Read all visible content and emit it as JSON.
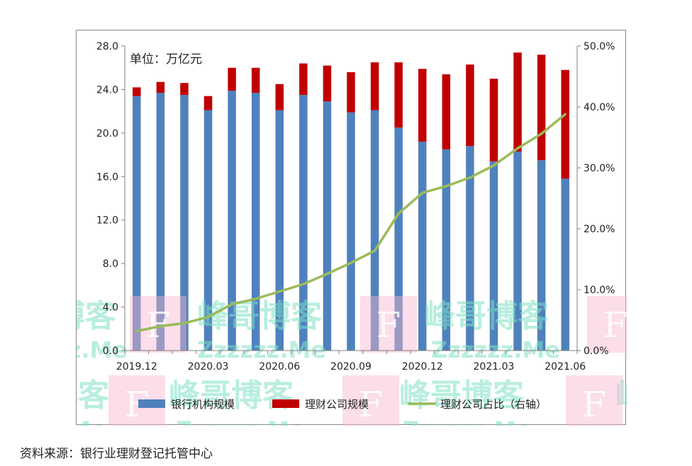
{
  "source_note": "资料来源：银行业理财登记托管中心",
  "chart_data": {
    "type": "bar",
    "stacked": true,
    "unit_note": "单位：万亿元",
    "categories": [
      "2019.12",
      "2020.01",
      "2020.02",
      "2020.03",
      "2020.04",
      "2020.05",
      "2020.06",
      "2020.07",
      "2020.08",
      "2020.09",
      "2020.10",
      "2020.11",
      "2020.12",
      "2021.01",
      "2021.02",
      "2021.03",
      "2021.04",
      "2021.05",
      "2021.06"
    ],
    "x_tick_labels": [
      "2019.12",
      "2020.03",
      "2020.06",
      "2020.09",
      "2020.12",
      "2021.03",
      "2021.06"
    ],
    "series": [
      {
        "name": "银行机构规模",
        "axis": "left",
        "kind": "bar",
        "color": "#4f81bd",
        "values": [
          23.4,
          23.7,
          23.5,
          22.1,
          23.9,
          23.7,
          22.1,
          23.5,
          22.9,
          21.9,
          22.1,
          20.5,
          19.2,
          18.5,
          18.8,
          17.4,
          18.3,
          17.5,
          15.8
        ]
      },
      {
        "name": "理财公司规模",
        "axis": "left",
        "kind": "bar",
        "color": "#c00000",
        "values": [
          0.8,
          1.0,
          1.1,
          1.3,
          2.1,
          2.3,
          2.4,
          2.9,
          3.3,
          3.7,
          4.4,
          6.0,
          6.7,
          6.9,
          7.5,
          7.6,
          9.1,
          9.7,
          10.0
        ]
      },
      {
        "name": "理财公司占比（右轴）",
        "axis": "right",
        "kind": "line",
        "color": "#9bbb59",
        "values": [
          3.2,
          4.0,
          4.5,
          5.5,
          7.6,
          8.5,
          9.7,
          10.9,
          12.6,
          14.4,
          16.4,
          22.5,
          25.9,
          27.0,
          28.4,
          30.4,
          33.2,
          35.6,
          38.8
        ]
      }
    ],
    "ylim": [
      0,
      28
    ],
    "y_ticks": [
      "0.0",
      "4.0",
      "8.0",
      "12.0",
      "16.0",
      "20.0",
      "24.0",
      "28.0"
    ],
    "y2lim": [
      0,
      50
    ],
    "y2_ticks": [
      "0.0%",
      "10.0%",
      "20.0%",
      "30.0%",
      "40.0%",
      "50.0%"
    ],
    "legend_position": "bottom",
    "grid": false,
    "watermarks": [
      "峰哥博客",
      "Zzzzzz.Me",
      "F"
    ]
  }
}
